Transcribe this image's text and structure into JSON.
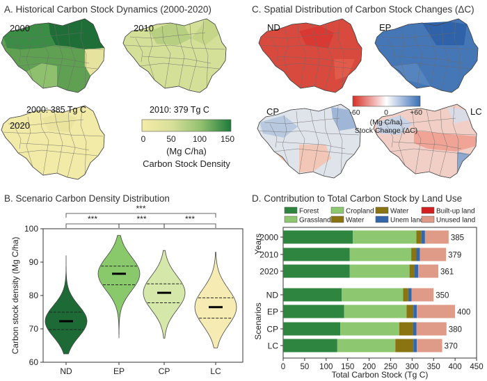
{
  "chart_data": [
    {
      "panel": "A",
      "type": "map",
      "title": "A. Historical Carbon Stock Dynamics (2000-2020)",
      "maps": [
        {
          "label": "2000",
          "total_text": "2000: 385 Tg C"
        },
        {
          "label": "2010",
          "total_text": "2010: 379 Tg C"
        },
        {
          "label": "2020"
        }
      ],
      "colorbar": {
        "ticks": [
          "0",
          "50",
          "100",
          "150"
        ],
        "unit": "(Mg C/ha)",
        "label": "Carbon Stock Density",
        "colors": [
          "#f4eba8",
          "#d8e09a",
          "#93c16f",
          "#1e7a3a"
        ]
      }
    },
    {
      "panel": "C",
      "type": "map",
      "title": "C. Spatial Distribution of Carbon Stock Changes (ΔC)",
      "maps": [
        {
          "label": "ND"
        },
        {
          "label": "EP"
        },
        {
          "label": "CP"
        },
        {
          "label": "LC"
        }
      ],
      "colorbar": {
        "ticks": [
          "-60",
          "0",
          "+60"
        ],
        "unit": "(Mg C/ha)",
        "label": "Stock Change (ΔC)",
        "colors": [
          "#d73027",
          "#ffffff",
          "#3a6fb5"
        ]
      }
    },
    {
      "panel": "B",
      "type": "violin",
      "title": "B. Scenario Carbon Density Distribution",
      "ylabel": "Carbon stock density (Mg C/ha)",
      "ylim": [
        60,
        100
      ],
      "yticks": [
        60,
        70,
        80,
        90,
        100
      ],
      "categories": [
        "ND",
        "EP",
        "CP",
        "LC"
      ],
      "violins": [
        {
          "name": "ND",
          "median": 72.3,
          "q1": 69.8,
          "q3": 75.0,
          "min": 62.5,
          "max": 92,
          "color": "#1d6a36"
        },
        {
          "name": "EP",
          "median": 86.5,
          "q1": 83.2,
          "q3": 88.8,
          "min": 67.2,
          "max": 98,
          "color": "#8ac96b"
        },
        {
          "name": "CP",
          "median": 80.8,
          "q1": 77.8,
          "q3": 83.5,
          "min": 67.2,
          "max": 93.5,
          "color": "#d5e8a9"
        },
        {
          "name": "LC",
          "median": 76.5,
          "q1": 73.2,
          "q3": 79.3,
          "min": 64.3,
          "max": 93,
          "color": "#f6ecb3"
        }
      ],
      "significance": [
        {
          "from": "ND",
          "to": "EP",
          "label": "***"
        },
        {
          "from": "EP",
          "to": "CP",
          "label": "***"
        },
        {
          "from": "CP",
          "to": "LC",
          "label": "***"
        },
        {
          "from": "ND",
          "to": "LC",
          "label": "***"
        }
      ]
    },
    {
      "panel": "D",
      "type": "bar",
      "orientation": "horizontal",
      "stacked": true,
      "title": "D. Contribution to Total Carbon Stock by Land Use",
      "xlabel": "Total Carbon Stock (Tg C)",
      "xlim": [
        0,
        450
      ],
      "xticks": [
        0,
        50,
        100,
        150,
        200,
        250,
        300,
        350,
        400,
        450
      ],
      "group_labels": [
        "Years",
        "Scenarios"
      ],
      "legend": [
        {
          "name": "Forest",
          "color": "#2e8540"
        },
        {
          "name": "Cropland",
          "color": "#8dc870"
        },
        {
          "name": "Water",
          "color": "#8a7412"
        },
        {
          "name": "Built-up land",
          "color": "#d32020"
        },
        {
          "name": "Grassland",
          "color": "#8dc870"
        },
        {
          "name": "Water",
          "color": "#8a7412"
        },
        {
          "name": "Unem land",
          "color": "#3467aa"
        },
        {
          "name": "Unused land",
          "color": "#df9a88"
        }
      ],
      "series_colors": [
        "#2e8540",
        "#8dc870",
        "#8a7412",
        "#3467aa",
        "#df9a88"
      ],
      "bars": [
        {
          "label": "2000",
          "group": "Years",
          "total": "385",
          "segments": [
            162,
            148,
            12,
            8,
            55
          ]
        },
        {
          "label": "2010",
          "group": "Years",
          "total": "379",
          "segments": [
            155,
            143,
            12,
            8,
            61
          ]
        },
        {
          "label": "2020",
          "group": "Years",
          "total": "361",
          "segments": [
            155,
            139,
            12,
            8,
            47
          ]
        },
        {
          "label": "ND",
          "group": "Scenarios",
          "total": "350",
          "segments": [
            136,
            143,
            12,
            8,
            51
          ]
        },
        {
          "label": "EP",
          "group": "Scenarios",
          "total": "400",
          "segments": [
            142,
            145,
            16,
            8,
            89
          ]
        },
        {
          "label": "CP",
          "group": "Scenarios",
          "total": "380",
          "segments": [
            133,
            137,
            32,
            8,
            70
          ]
        },
        {
          "label": "LC",
          "group": "Scenarios",
          "total": "370",
          "segments": [
            126,
            135,
            42,
            8,
            59
          ]
        }
      ]
    }
  ]
}
